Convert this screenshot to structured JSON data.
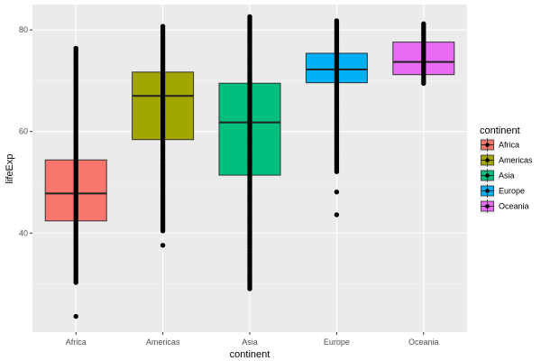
{
  "chart_data": {
    "type": "boxplot",
    "title": "",
    "xlabel": "continent",
    "ylabel": "lifeExp",
    "ylim": [
      20.5,
      85
    ],
    "yticks": [
      40,
      60,
      80
    ],
    "grid": true,
    "legend": {
      "title": "continent",
      "position": "right",
      "entries": [
        "Africa",
        "Americas",
        "Asia",
        "Europe",
        "Oceania"
      ]
    },
    "categories": [
      "Africa",
      "Americas",
      "Asia",
      "Europe",
      "Oceania"
    ],
    "colors": [
      "#F8766D",
      "#A3A500",
      "#00BF7D",
      "#00B0F6",
      "#E76BF3"
    ],
    "boxes": [
      {
        "name": "Africa",
        "q1": 42.4,
        "median": 47.8,
        "q3": 54.4
      },
      {
        "name": "Americas",
        "q1": 58.4,
        "median": 67.0,
        "q3": 71.7
      },
      {
        "name": "Asia",
        "q1": 51.4,
        "median": 61.8,
        "q3": 69.5
      },
      {
        "name": "Europe",
        "q1": 69.6,
        "median": 72.2,
        "q3": 75.4
      },
      {
        "name": "Oceania",
        "q1": 71.2,
        "median": 73.7,
        "q3": 77.6
      }
    ],
    "points": [
      {
        "name": "Africa",
        "ranges": [
          [
            30.0,
            76.4
          ]
        ],
        "extra": [
          23.6
        ]
      },
      {
        "name": "Americas",
        "ranges": [
          [
            40.4,
            80.7
          ]
        ],
        "extra": [
          37.6
        ]
      },
      {
        "name": "Asia",
        "ranges": [
          [
            28.8,
            82.6
          ]
        ],
        "extra": []
      },
      {
        "name": "Europe",
        "ranges": [
          [
            52.0,
            81.8
          ]
        ],
        "extra": [
          48.1,
          43.6
        ]
      },
      {
        "name": "Oceania",
        "ranges": [
          [
            69.1,
            81.2
          ]
        ],
        "extra": []
      }
    ]
  }
}
